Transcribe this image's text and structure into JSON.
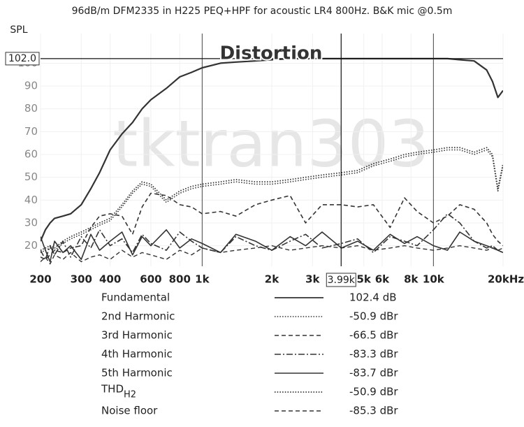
{
  "chart_data": {
    "type": "line",
    "title": "96dB/m DFM2335 in H225 PEQ+HPF for acoustic LR4 800Hz. B&K mic @0.5m",
    "y_label": "SPL",
    "annotation": "Distortion",
    "watermark": "tktran303",
    "log_x": true,
    "grid": true,
    "xlim": [
      200,
      20000
    ],
    "ylim": [
      11,
      113
    ],
    "xticks": [
      200,
      300,
      400,
      600,
      800,
      {
        "value": 1000,
        "label": "1k"
      },
      {
        "value": 2000,
        "label": "2k"
      },
      {
        "value": 3000,
        "label": "3k"
      },
      {
        "value": 5000,
        "label": "5k"
      },
      {
        "value": 6000,
        "label": "6k"
      },
      {
        "value": 8000,
        "label": "8k"
      },
      {
        "value": 10000,
        "label": "10k"
      },
      {
        "value": 20000,
        "label": "20kHz"
      }
    ],
    "yticks": [
      20,
      30,
      40,
      50,
      60,
      70,
      80,
      90,
      100
    ],
    "cursor": {
      "x": {
        "value": 3990,
        "label": "3.99k"
      },
      "y": {
        "value": 102,
        "label": "102.0"
      }
    },
    "x": [
      200,
      210,
      220,
      230,
      250,
      270,
      300,
      330,
      360,
      400,
      450,
      500,
      550,
      600,
      700,
      800,
      900,
      1000,
      1200,
      1400,
      1700,
      2000,
      2400,
      2800,
      3300,
      4000,
      4700,
      5500,
      6500,
      7500,
      8500,
      10000,
      11500,
      13000,
      15000,
      17000,
      18000,
      19000,
      20000
    ],
    "series": [
      {
        "name": "Fundamental",
        "readout": "102.4 dB",
        "color": "#333333",
        "style": "solid",
        "width": 2.2,
        "values": [
          22,
          27,
          30,
          32,
          33,
          34,
          38,
          45,
          52,
          62,
          69,
          74,
          80,
          84,
          89,
          94,
          96,
          98,
          100,
          100.5,
          101,
          101.5,
          102,
          102,
          102,
          102,
          102,
          102,
          102,
          102,
          102,
          102,
          102,
          101.5,
          101,
          97,
          92,
          85,
          88
        ]
      },
      {
        "name": "2nd Harmonic",
        "readout": "-50.9 dBr",
        "color": "#333333",
        "style": "dotted",
        "width": 1.6,
        "values": [
          17,
          18,
          19,
          18,
          21,
          23,
          25,
          27,
          29,
          31,
          37,
          43,
          47,
          46,
          39,
          43,
          45,
          46,
          47,
          48,
          47,
          47,
          48,
          49,
          50,
          51,
          52,
          55,
          57,
          59,
          60,
          61,
          62,
          62,
          60,
          62,
          59,
          44,
          55
        ]
      },
      {
        "name": "3rd Harmonic",
        "readout": "-66.5 dBr",
        "color": "#333333",
        "style": "dashed",
        "width": 1.6,
        "values": [
          15,
          14,
          16,
          18,
          17,
          19,
          20,
          28,
          33,
          34,
          33,
          25,
          37,
          43,
          42,
          38,
          37,
          34,
          35,
          33,
          38,
          40,
          42,
          30,
          38,
          38,
          37,
          38,
          28,
          41,
          35,
          30,
          33,
          38,
          36,
          30,
          25,
          22,
          20
        ]
      },
      {
        "name": "4th Harmonic",
        "readout": "-83.3 dBr",
        "color": "#333333",
        "style": "dashdot",
        "width": 1.6,
        "values": [
          18,
          14,
          20,
          16,
          22,
          15,
          24,
          19,
          27,
          20,
          23,
          17,
          25,
          21,
          18,
          26,
          22,
          19,
          17,
          24,
          20,
          18,
          22,
          25,
          19,
          21,
          23,
          17,
          24,
          22,
          20,
          27,
          34,
          30,
          22,
          19,
          20,
          18,
          17
        ]
      },
      {
        "name": "5th Harmonic",
        "readout": "-83.7 dBr",
        "color": "#333333",
        "style": "solid",
        "width": 1.6,
        "values": [
          24,
          18,
          13,
          22,
          17,
          20,
          14,
          25,
          18,
          22,
          26,
          16,
          24,
          20,
          27,
          19,
          23,
          21,
          17,
          25,
          22,
          18,
          24,
          20,
          26,
          19,
          22,
          18,
          25,
          21,
          24,
          20,
          18,
          26,
          22,
          20,
          19,
          18,
          17
        ]
      },
      {
        "name": "THD",
        "name_sub": "H2",
        "readout": "-50.9 dBr",
        "color": "#333333",
        "style": "dotted",
        "width": 1.8,
        "values": [
          18,
          19,
          20,
          19,
          22,
          24,
          26,
          28,
          30,
          32,
          38,
          44,
          48,
          47,
          40,
          44,
          46,
          47,
          48,
          49,
          48,
          48,
          49,
          50,
          51,
          52,
          53,
          56,
          58,
          60,
          61,
          62,
          63,
          63,
          61,
          63,
          60,
          45,
          56
        ]
      },
      {
        "name": "Noise floor",
        "readout": "-85.3 dBr",
        "color": "#333333",
        "style": "dashed",
        "width": 1.4,
        "values": [
          13,
          15,
          12,
          16,
          14,
          17,
          13,
          15,
          16,
          14,
          18,
          15,
          17,
          16,
          14,
          18,
          16,
          19,
          17,
          18,
          19,
          20,
          18,
          19,
          20,
          19,
          20,
          18,
          19,
          20,
          19,
          18,
          19,
          20,
          19,
          18,
          19,
          18,
          19
        ]
      }
    ]
  }
}
